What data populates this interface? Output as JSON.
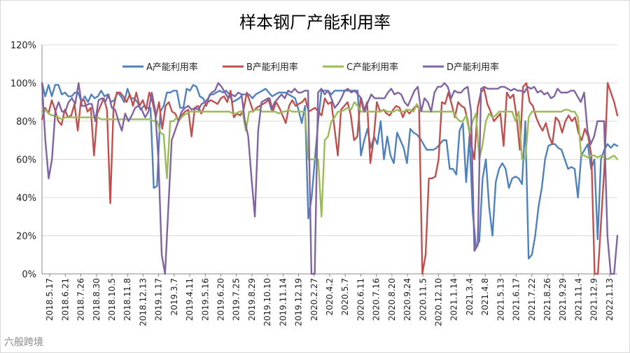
{
  "chart_data": {
    "type": "line",
    "title": "样本钢厂产能利用率",
    "xlabel": "",
    "ylabel": "",
    "ylim": [
      0,
      120
    ],
    "y_ticks": [
      "0%",
      "20%",
      "40%",
      "60%",
      "80%",
      "100%",
      "120%"
    ],
    "y_tick_values": [
      0,
      20,
      40,
      60,
      80,
      100,
      120
    ],
    "x_tick_labels": [
      "2018.5.17",
      "2018.6.21",
      "2018.7.26",
      "2018.8.30",
      "2018.10.5",
      "2018.11.8",
      "2018.12.13",
      "2019.1.17",
      "2019.3.7",
      "2019.4.11",
      "2019.5.16",
      "2019.6.20",
      "2019.7.25",
      "2019.8.29",
      "2019.10.10",
      "2019.11.14",
      "2019.12.19",
      "2020.2.27",
      "2020.4.2",
      "2020.5.7",
      "2020.6.11",
      "2020.7.16",
      "2020.8.20",
      "2020.9.24",
      "2020.11.5",
      "2020.12.10",
      "2021.1.14",
      "2021.3.4",
      "2021.4.8",
      "2021.5.13",
      "2021.6.17",
      "2021.7.22",
      "2021.8.26",
      "2021.9.29",
      "2021.11.4",
      "2021.12.9",
      "2022.1.13"
    ],
    "grid": "horizontal",
    "legend": "top",
    "series": [
      {
        "name": "A产能利用率",
        "color": "#4f81bd",
        "values": [
          100,
          93,
          99,
          93,
          99,
          99,
          94,
          95,
          93,
          93,
          95,
          95,
          90,
          93,
          90,
          94,
          92,
          93,
          96,
          93,
          94,
          90,
          91,
          95,
          93,
          90,
          97,
          92,
          92,
          90,
          86,
          88,
          87,
          87,
          45,
          46,
          85,
          88,
          95,
          95,
          96,
          96,
          87,
          87,
          97,
          96,
          99,
          98,
          93,
          92,
          88,
          94,
          94,
          95,
          96,
          95,
          96,
          94,
          90,
          91,
          92,
          94,
          94,
          94,
          92,
          94,
          95,
          96,
          97,
          95,
          93,
          94,
          95,
          95,
          95,
          94,
          93,
          92,
          86,
          79,
          88,
          29,
          40,
          60,
          80,
          96,
          96,
          96,
          94,
          96,
          96,
          96,
          96,
          96,
          96,
          96,
          96,
          62,
          70,
          76,
          66,
          72,
          68,
          80,
          60,
          72,
          62,
          58,
          74,
          70,
          66,
          58,
          76,
          74,
          73,
          71,
          68,
          65,
          65,
          65,
          66,
          68,
          70,
          70,
          55,
          55,
          52,
          75,
          79,
          48,
          72,
          32,
          14,
          17,
          50,
          60,
          35,
          20,
          48,
          55,
          58,
          55,
          45,
          50,
          51,
          50,
          47,
          80,
          8,
          10,
          20,
          35,
          45,
          60,
          67,
          68,
          68,
          66,
          65,
          60,
          55,
          56,
          55,
          40,
          62,
          65,
          68,
          55,
          60,
          18,
          60,
          65,
          68,
          66,
          68,
          67
        ]
      },
      {
        "name": "B产能利用率",
        "color": "#c0504d",
        "values": [
          81,
          87,
          84,
          91,
          86,
          80,
          78,
          86,
          82,
          83,
          89,
          75,
          91,
          91,
          85,
          87,
          62,
          84,
          88,
          92,
          86,
          37,
          87,
          95,
          95,
          93,
          90,
          94,
          88,
          95,
          88,
          91,
          86,
          95,
          90,
          82,
          90,
          76,
          88,
          90,
          85,
          84,
          80,
          83,
          85,
          86,
          72,
          87,
          88,
          84,
          88,
          90,
          91,
          90,
          89,
          92,
          93,
          90,
          96,
          82,
          84,
          83,
          86,
          95,
          90,
          85,
          87,
          88,
          89,
          90,
          92,
          85,
          90,
          87,
          83,
          79,
          88,
          91,
          88,
          89,
          90,
          92,
          85,
          86,
          87,
          85,
          83,
          92,
          89,
          90,
          76,
          62,
          86,
          88,
          90,
          83,
          70,
          72,
          92,
          85,
          90,
          58,
          70,
          90,
          85,
          86,
          84,
          83,
          86,
          88,
          87,
          82,
          86,
          84,
          86,
          88,
          87,
          0,
          10,
          50,
          50,
          51,
          60,
          90,
          89,
          95,
          89,
          82,
          90,
          88,
          87,
          80,
          68,
          60,
          87,
          95,
          97,
          89,
          85,
          80,
          82,
          84,
          67,
          95,
          92,
          94,
          82,
          65,
          98,
          100,
          90,
          88,
          82,
          78,
          75,
          79,
          72,
          68,
          82,
          80,
          74,
          80,
          83,
          80,
          82,
          74,
          70,
          76,
          72,
          62,
          0,
          0,
          28,
          56,
          100,
          95,
          90,
          83
        ]
      },
      {
        "name": "C产能利用率",
        "color": "#9bbb59",
        "values": [
          85,
          86,
          84,
          83,
          83,
          82,
          81,
          82,
          82,
          82,
          82,
          82,
          82,
          82,
          82,
          82,
          82,
          82,
          81,
          81,
          81,
          81,
          81,
          81,
          81,
          81,
          81,
          81,
          81,
          81,
          81,
          81,
          81,
          81,
          80,
          80,
          74,
          73,
          50,
          80,
          80,
          82,
          81,
          83,
          84,
          85,
          85,
          85,
          85,
          85,
          85,
          85,
          85,
          85,
          85,
          85,
          85,
          85,
          84,
          84,
          85,
          85,
          75,
          85,
          85,
          86,
          86,
          85,
          85,
          85,
          85,
          85,
          84,
          85,
          85,
          86,
          85,
          85,
          85,
          85,
          85,
          60,
          60,
          60,
          60,
          30,
          70,
          72,
          80,
          82,
          85,
          85,
          86,
          87,
          86,
          90,
          88,
          85,
          85,
          85,
          85,
          85,
          85,
          85,
          86,
          85,
          85,
          85,
          86,
          85,
          85,
          86,
          86,
          85,
          89,
          86,
          85,
          85,
          85,
          85,
          85,
          85,
          85,
          85,
          85,
          85,
          82,
          80,
          80,
          83,
          74,
          80,
          84,
          60,
          68,
          80,
          84,
          82,
          83,
          85,
          85,
          85,
          85,
          85,
          80,
          85,
          60,
          60,
          82,
          85,
          85,
          85,
          85,
          85,
          85,
          85,
          85,
          85,
          85,
          86,
          86,
          85,
          85,
          82,
          62,
          62,
          61,
          62,
          62,
          61,
          62,
          61,
          60,
          61,
          62,
          60
        ]
      },
      {
        "name": "D产能利用率",
        "color": "#8064a2",
        "values": [
          100,
          70,
          50,
          60,
          85,
          90,
          85,
          85,
          90,
          92,
          89,
          100,
          88,
          88,
          89,
          89,
          80,
          91,
          92,
          90,
          94,
          87,
          86,
          80,
          75,
          84,
          80,
          83,
          87,
          88,
          86,
          82,
          85,
          95,
          86,
          60,
          10,
          0,
          35,
          70,
          75,
          80,
          85,
          87,
          88,
          86,
          87,
          86,
          89,
          90,
          92,
          95,
          96,
          100,
          98,
          95,
          92,
          94,
          93,
          95,
          94,
          80,
          72,
          50,
          30,
          75,
          90,
          91,
          92,
          86,
          90,
          92,
          94,
          92,
          96,
          95,
          97,
          95,
          95,
          96,
          96,
          0,
          0,
          95,
          97,
          94,
          96,
          92,
          87,
          89,
          92,
          96,
          97,
          95,
          96,
          94,
          92,
          85,
          90,
          94,
          92,
          92,
          92,
          92,
          95,
          97,
          94,
          95,
          94,
          90,
          88,
          92,
          96,
          98,
          85,
          92,
          90,
          85,
          95,
          98,
          98,
          100,
          98,
          92,
          96,
          95,
          95,
          97,
          98,
          85,
          12,
          15,
          97,
          98,
          97,
          97,
          97,
          97,
          98,
          98,
          97,
          96,
          97,
          96,
          96,
          95,
          98,
          97,
          98,
          95,
          96,
          94,
          95,
          92,
          93,
          97,
          95,
          95,
          95,
          96,
          96,
          93,
          90,
          95,
          75,
          68,
          72,
          80,
          80,
          80,
          20,
          0,
          0,
          20
        ]
      }
    ]
  },
  "watermark": "六般跨境"
}
